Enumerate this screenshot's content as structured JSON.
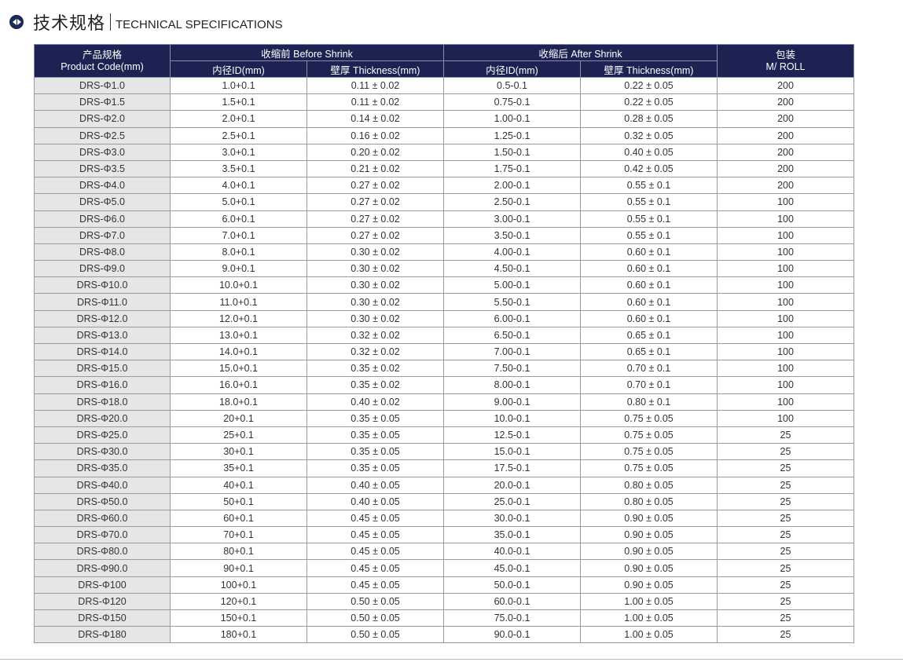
{
  "title": {
    "cn": "技术规格",
    "en": "TECHNICAL SPECIFICATIONS",
    "icon": "circle-arrows-icon"
  },
  "colors": {
    "header_bg": "#1c2353",
    "code_bg": "#e6e6e6"
  },
  "header": {
    "product_code": "产品规格\nProduct Code(mm)",
    "before": "收缩前 Before Shrink",
    "after": "收缩后 After Shrink",
    "packaging": "包装\nM/ ROLL",
    "id": "内径ID(mm)",
    "thickness": "壁厚 Thickness(mm)"
  },
  "rows": [
    [
      "DRS-Φ1.0",
      "1.0+0.1",
      "0.11 ± 0.02",
      "0.5-0.1",
      "0.22 ± 0.05",
      "200"
    ],
    [
      "DRS-Φ1.5",
      "1.5+0.1",
      "0.11 ± 0.02",
      "0.75-0.1",
      "0.22 ± 0.05",
      "200"
    ],
    [
      "DRS-Φ2.0",
      "2.0+0.1",
      "0.14 ± 0.02",
      "1.00-0.1",
      "0.28 ± 0.05",
      "200"
    ],
    [
      "DRS-Φ2.5",
      "2.5+0.1",
      "0.16 ± 0.02",
      "1.25-0.1",
      "0.32 ± 0.05",
      "200"
    ],
    [
      "DRS-Φ3.0",
      "3.0+0.1",
      "0.20 ± 0.02",
      "1.50-0.1",
      "0.40 ± 0.05",
      "200"
    ],
    [
      "DRS-Φ3.5",
      "3.5+0.1",
      "0.21 ± 0.02",
      "1.75-0.1",
      "0.42 ± 0.05",
      "200"
    ],
    [
      "DRS-Φ4.0",
      "4.0+0.1",
      "0.27 ± 0.02",
      "2.00-0.1",
      "0.55 ± 0.1",
      "200"
    ],
    [
      "DRS-Φ5.0",
      "5.0+0.1",
      "0.27 ± 0.02",
      "2.50-0.1",
      "0.55 ± 0.1",
      "100"
    ],
    [
      "DRS-Φ6.0",
      "6.0+0.1",
      "0.27 ± 0.02",
      "3.00-0.1",
      "0.55 ± 0.1",
      "100"
    ],
    [
      "DRS-Φ7.0",
      "7.0+0.1",
      "0.27 ± 0.02",
      "3.50-0.1",
      "0.55 ± 0.1",
      "100"
    ],
    [
      "DRS-Φ8.0",
      "8.0+0.1",
      "0.30 ± 0.02",
      "4.00-0.1",
      "0.60 ± 0.1",
      "100"
    ],
    [
      "DRS-Φ9.0",
      "9.0+0.1",
      "0.30 ± 0.02",
      "4.50-0.1",
      "0.60 ± 0.1",
      "100"
    ],
    [
      "DRS-Φ10.0",
      "10.0+0.1",
      "0.30 ± 0.02",
      "5.00-0.1",
      "0.60 ± 0.1",
      "100"
    ],
    [
      "DRS-Φ11.0",
      "11.0+0.1",
      "0.30 ± 0.02",
      "5.50-0.1",
      "0.60 ± 0.1",
      "100"
    ],
    [
      "DRS-Φ12.0",
      "12.0+0.1",
      "0.30 ± 0.02",
      "6.00-0.1",
      "0.60 ± 0.1",
      "100"
    ],
    [
      "DRS-Φ13.0",
      "13.0+0.1",
      "0.32 ± 0.02",
      "6.50-0.1",
      "0.65 ± 0.1",
      "100"
    ],
    [
      "DRS-Φ14.0",
      "14.0+0.1",
      "0.32 ± 0.02",
      "7.00-0.1",
      "0.65 ± 0.1",
      "100"
    ],
    [
      "DRS-Φ15.0",
      "15.0+0.1",
      "0.35 ± 0.02",
      "7.50-0.1",
      "0.70 ± 0.1",
      "100"
    ],
    [
      "DRS-Φ16.0",
      "16.0+0.1",
      "0.35 ± 0.02",
      "8.00-0.1",
      "0.70 ± 0.1",
      "100"
    ],
    [
      "DRS-Φ18.0",
      "18.0+0.1",
      "0.40 ± 0.02",
      "9.00-0.1",
      "0.80 ± 0.1",
      "100"
    ],
    [
      "DRS-Φ20.0",
      "20+0.1",
      "0.35 ± 0.05",
      "10.0-0.1",
      "0.75 ± 0.05",
      "100"
    ],
    [
      "DRS-Φ25.0",
      "25+0.1",
      "0.35 ± 0.05",
      "12.5-0.1",
      "0.75 ± 0.05",
      "25"
    ],
    [
      "DRS-Φ30.0",
      "30+0.1",
      "0.35 ± 0.05",
      "15.0-0.1",
      "0.75 ± 0.05",
      "25"
    ],
    [
      "DRS-Φ35.0",
      "35+0.1",
      "0.35 ± 0.05",
      "17.5-0.1",
      "0.75 ± 0.05",
      "25"
    ],
    [
      "DRS-Φ40.0",
      "40+0.1",
      "0.40 ± 0.05",
      "20.0-0.1",
      "0.80 ± 0.05",
      "25"
    ],
    [
      "DRS-Φ50.0",
      "50+0.1",
      "0.40 ± 0.05",
      "25.0-0.1",
      "0.80 ± 0.05",
      "25"
    ],
    [
      "DRS-Φ60.0",
      "60+0.1",
      "0.45 ± 0.05",
      "30.0-0.1",
      "0.90 ± 0.05",
      "25"
    ],
    [
      "DRS-Φ70.0",
      "70+0.1",
      "0.45 ± 0.05",
      "35.0-0.1",
      "0.90 ± 0.05",
      "25"
    ],
    [
      "DRS-Φ80.0",
      "80+0.1",
      "0.45 ± 0.05",
      "40.0-0.1",
      "0.90 ± 0.05",
      "25"
    ],
    [
      "DRS-Φ90.0",
      "90+0.1",
      "0.45 ± 0.05",
      "45.0-0.1",
      "0.90 ± 0.05",
      "25"
    ],
    [
      "DRS-Φ100",
      "100+0.1",
      "0.45 ± 0.05",
      "50.0-0.1",
      "0.90 ± 0.05",
      "25"
    ],
    [
      "DRS-Φ120",
      "120+0.1",
      "0.50 ± 0.05",
      "60.0-0.1",
      "1.00 ± 0.05",
      "25"
    ],
    [
      "DRS-Φ150",
      "150+0.1",
      "0.50 ± 0.05",
      "75.0-0.1",
      "1.00 ± 0.05",
      "25"
    ],
    [
      "DRS-Φ180",
      "180+0.1",
      "0.50 ± 0.05",
      "90.0-0.1",
      "1.00 ± 0.05",
      "25"
    ]
  ]
}
